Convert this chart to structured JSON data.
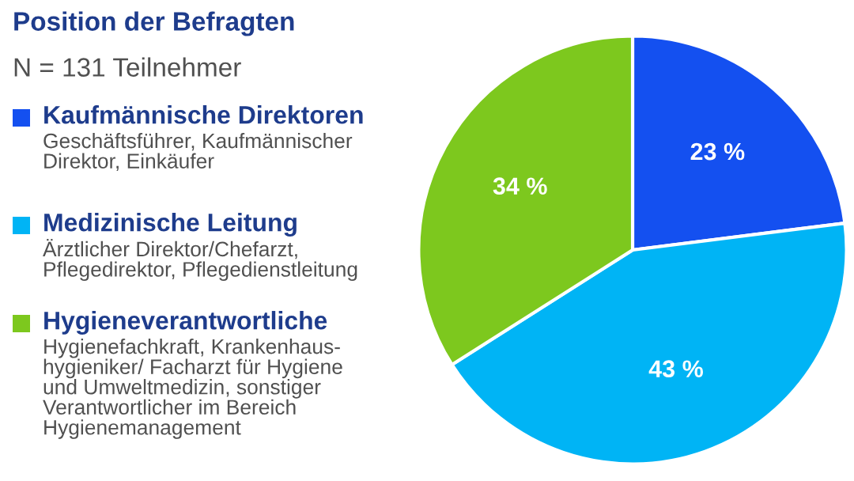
{
  "chart_data": {
    "type": "pie",
    "title": "Position der Befragten",
    "subtitle": "N = 131 Teilnehmer",
    "categories": [
      "Kaufmännische Direktoren",
      "Medizinische Leitung",
      "Hygieneverantwortliche"
    ],
    "values": [
      23,
      43,
      34
    ],
    "colors": [
      "#1450f0",
      "#00b4f5",
      "#7dc81e"
    ],
    "value_labels": [
      "23 %",
      "43 %",
      "34 %"
    ],
    "legend": "left",
    "annotations": [
      "Geschäftsführer, Kaufmännischer\nDirektor, Einkäufer",
      "Ärztlicher Direktor/Chefarzt,\nPflegedirektor, Pflegedienstleitung",
      "Hygienefachkraft, Krankenhaus-\nhygieniker/ Facharzt für Hygiene\nund Umweltmedizin, sonstiger\nVerantwortlicher im Bereich\nHygienemanagement"
    ]
  }
}
